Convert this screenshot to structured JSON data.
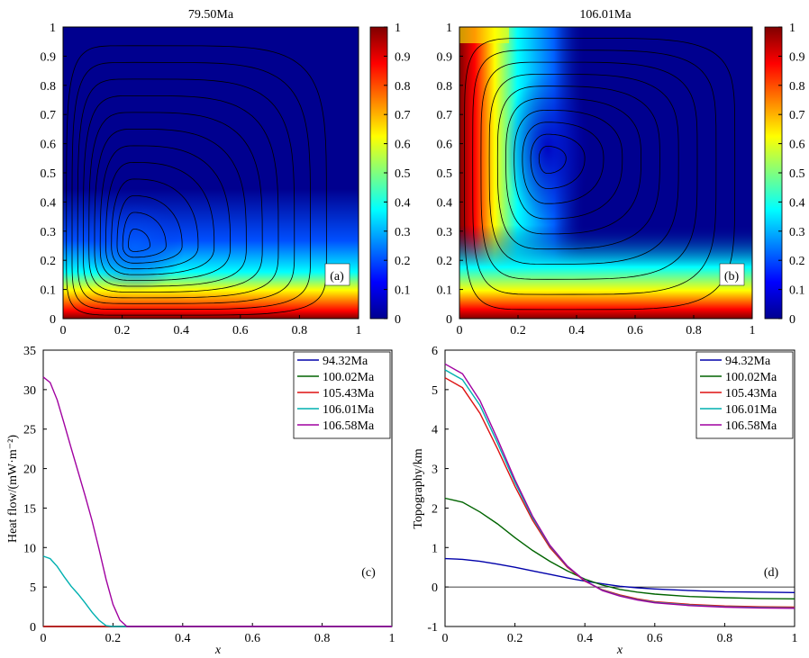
{
  "figure": {
    "panels": [
      {
        "id": "a",
        "type": "heatmap",
        "title": "79.50Ma",
        "panel_label": "(a)",
        "xlim": [
          0,
          1
        ],
        "ylim": [
          0,
          1
        ],
        "xticks": [
          "0",
          "0.2",
          "0.4",
          "0.6",
          "0.8",
          "1"
        ],
        "yticks": [
          "0",
          "0.1",
          "0.2",
          "0.3",
          "0.4",
          "0.5",
          "0.6",
          "0.7",
          "0.8",
          "0.9",
          "1"
        ],
        "colorbar": {
          "range": [
            0,
            1
          ],
          "ticks": [
            "0",
            "0.1",
            "0.2",
            "0.3",
            "0.4",
            "0.5",
            "0.6",
            "0.7",
            "0.8",
            "0.9",
            "1"
          ]
        },
        "field": {
          "boundary_layer": "bottom",
          "vortex_center": [
            0.24,
            0.25
          ],
          "contour_count": 12
        },
        "colors": {
          "low": "#00008f",
          "high": "#800000"
        }
      },
      {
        "id": "b",
        "type": "heatmap",
        "title": "106.01Ma",
        "panel_label": "(b)",
        "xlim": [
          0,
          1
        ],
        "ylim": [
          0,
          1
        ],
        "xticks": [
          "0",
          "0.2",
          "0.4",
          "0.6",
          "0.8",
          "1"
        ],
        "yticks": [
          "0",
          "0.1",
          "0.2",
          "0.3",
          "0.4",
          "0.5",
          "0.6",
          "0.7",
          "0.8",
          "0.9",
          "1"
        ],
        "colorbar": {
          "range": [
            0,
            1
          ],
          "ticks": [
            "0",
            "0.1",
            "0.2",
            "0.3",
            "0.4",
            "0.5",
            "0.6",
            "0.7",
            "0.8",
            "0.9",
            "1"
          ]
        },
        "field": {
          "boundary_layer": "left-bottom",
          "vortex_center": [
            0.3,
            0.55
          ],
          "contour_count": 10
        },
        "colors": {
          "low": "#00008f",
          "high": "#800000"
        }
      }
    ]
  },
  "chart_data": [
    {
      "id": "c",
      "type": "line",
      "panel_label": "(c)",
      "xlabel": "x",
      "ylabel": "Heat flow/(mW·m⁻²)",
      "xlim": [
        0,
        1
      ],
      "ylim": [
        0,
        35
      ],
      "xticks": [
        "0",
        "0.2",
        "0.4",
        "0.6",
        "0.8",
        "1"
      ],
      "yticks": [
        "0",
        "5",
        "10",
        "15",
        "20",
        "25",
        "30",
        "35"
      ],
      "legend_position": "top-right",
      "series": [
        {
          "name": "94.32Ma",
          "color": "#0000aa",
          "x": [
            0,
            1
          ],
          "y": [
            0,
            0
          ]
        },
        {
          "name": "100.02Ma",
          "color": "#006400",
          "x": [
            0,
            1
          ],
          "y": [
            0,
            0
          ]
        },
        {
          "name": "105.43Ma",
          "color": "#dd1111",
          "x": [
            0,
            1
          ],
          "y": [
            0,
            0
          ]
        },
        {
          "name": "106.01Ma",
          "color": "#00b0b0",
          "x": [
            0,
            0.02,
            0.04,
            0.06,
            0.08,
            0.1,
            0.12,
            0.14,
            0.16,
            0.18,
            0.2,
            1.0
          ],
          "y": [
            8.9,
            8.6,
            7.6,
            6.3,
            5.1,
            4.1,
            3.0,
            1.8,
            0.8,
            0.1,
            0,
            0
          ]
        },
        {
          "name": "106.58Ma",
          "color": "#a000a0",
          "x": [
            0,
            0.02,
            0.04,
            0.06,
            0.08,
            0.1,
            0.12,
            0.14,
            0.16,
            0.18,
            0.2,
            0.22,
            0.24,
            1.0
          ],
          "y": [
            31.6,
            30.9,
            28.7,
            25.7,
            22.6,
            19.6,
            16.6,
            13.4,
            9.8,
            6.0,
            2.8,
            0.8,
            0,
            0
          ]
        }
      ]
    },
    {
      "id": "d",
      "type": "line",
      "panel_label": "(d)",
      "xlabel": "x",
      "ylabel": "Topography/km",
      "xlim": [
        0,
        1
      ],
      "ylim": [
        -1,
        6
      ],
      "xticks": [
        "0",
        "0.2",
        "0.4",
        "0.6",
        "0.8",
        "1"
      ],
      "yticks": [
        "-1",
        "0",
        "1",
        "2",
        "3",
        "4",
        "5",
        "6"
      ],
      "legend_position": "top-right",
      "baseline": 0,
      "series": [
        {
          "name": "94.32Ma",
          "color": "#0000aa",
          "x": [
            0,
            0.05,
            0.1,
            0.15,
            0.2,
            0.25,
            0.3,
            0.35,
            0.4,
            0.45,
            0.5,
            0.55,
            0.6,
            0.7,
            0.8,
            0.9,
            1.0
          ],
          "y": [
            0.72,
            0.7,
            0.65,
            0.58,
            0.5,
            0.41,
            0.32,
            0.23,
            0.15,
            0.08,
            0.02,
            -0.02,
            -0.05,
            -0.09,
            -0.12,
            -0.13,
            -0.14
          ]
        },
        {
          "name": "100.02Ma",
          "color": "#006400",
          "x": [
            0,
            0.05,
            0.1,
            0.15,
            0.2,
            0.25,
            0.3,
            0.35,
            0.4,
            0.45,
            0.5,
            0.55,
            0.6,
            0.7,
            0.8,
            0.9,
            1.0
          ],
          "y": [
            2.25,
            2.15,
            1.9,
            1.6,
            1.25,
            0.93,
            0.65,
            0.41,
            0.2,
            0.05,
            -0.06,
            -0.13,
            -0.18,
            -0.24,
            -0.27,
            -0.29,
            -0.3
          ]
        },
        {
          "name": "105.43Ma",
          "color": "#dd1111",
          "x": [
            0,
            0.05,
            0.1,
            0.15,
            0.2,
            0.25,
            0.3,
            0.35,
            0.4,
            0.45,
            0.5,
            0.55,
            0.6,
            0.7,
            0.8,
            0.9,
            1.0
          ],
          "y": [
            5.3,
            5.05,
            4.4,
            3.5,
            2.55,
            1.7,
            1.0,
            0.5,
            0.15,
            -0.07,
            -0.2,
            -0.3,
            -0.37,
            -0.44,
            -0.48,
            -0.5,
            -0.51
          ]
        },
        {
          "name": "106.01Ma",
          "color": "#00b0b0",
          "x": [
            0,
            0.05,
            0.1,
            0.15,
            0.2,
            0.25,
            0.3,
            0.35,
            0.4,
            0.45,
            0.5,
            0.55,
            0.6,
            0.7,
            0.8,
            0.9,
            1.0
          ],
          "y": [
            5.5,
            5.25,
            4.6,
            3.65,
            2.65,
            1.76,
            1.04,
            0.52,
            0.16,
            -0.08,
            -0.22,
            -0.32,
            -0.39,
            -0.46,
            -0.5,
            -0.52,
            -0.53
          ]
        },
        {
          "name": "106.58Ma",
          "color": "#a000a0",
          "x": [
            0,
            0.05,
            0.1,
            0.15,
            0.2,
            0.25,
            0.3,
            0.35,
            0.4,
            0.45,
            0.5,
            0.55,
            0.6,
            0.7,
            0.8,
            0.9,
            1.0
          ],
          "y": [
            5.65,
            5.4,
            4.72,
            3.75,
            2.72,
            1.8,
            1.06,
            0.53,
            0.16,
            -0.09,
            -0.23,
            -0.33,
            -0.4,
            -0.47,
            -0.51,
            -0.53,
            -0.54
          ]
        }
      ]
    }
  ]
}
